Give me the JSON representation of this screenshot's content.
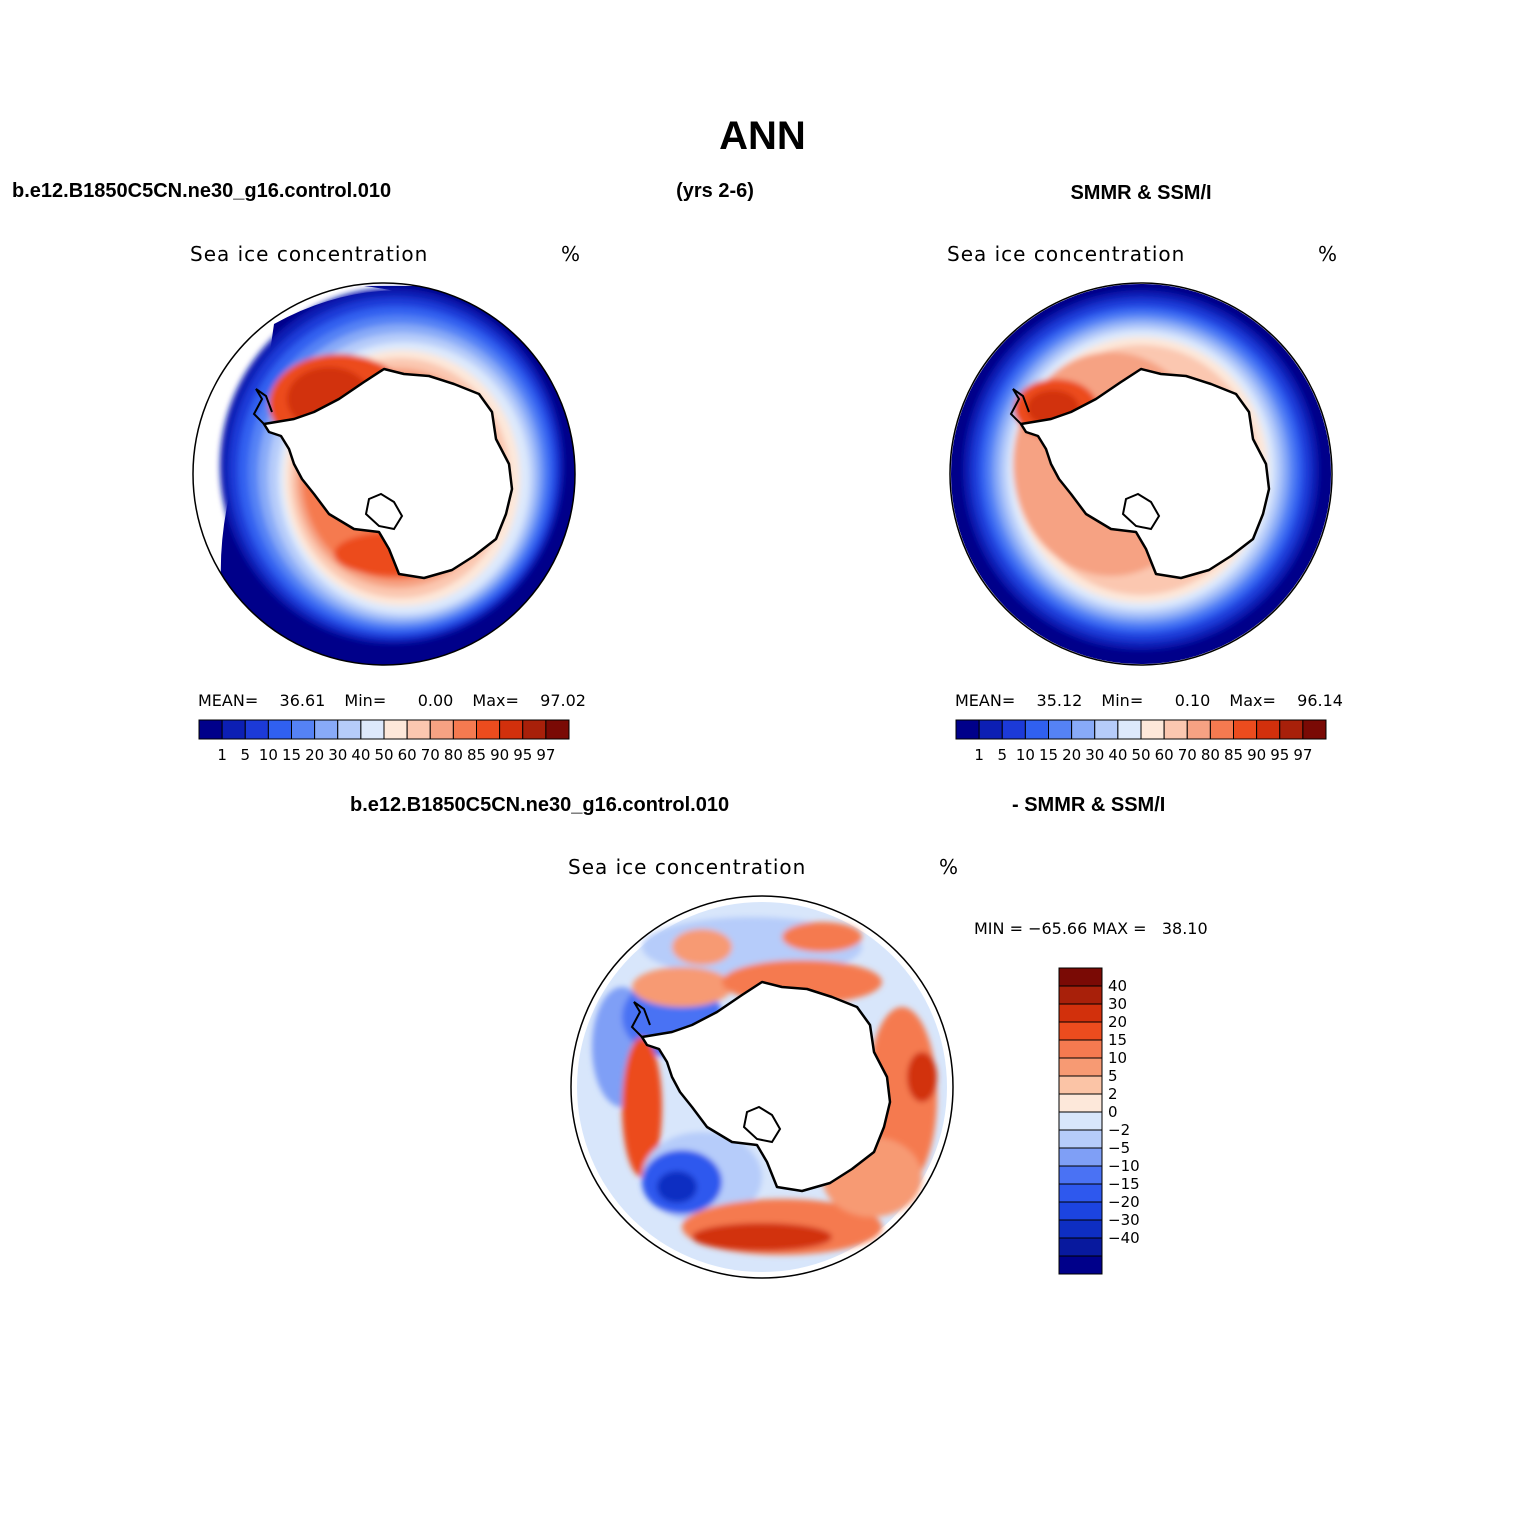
{
  "figure": {
    "title": "ANN",
    "case_label": "b.e12.B1850C5CN.ne30_g16.control.010",
    "years_label": "(yrs 2-6)",
    "obs_label": "SMMR & SSM/I"
  },
  "panels": [
    {
      "var_label": "Sea ice concentration",
      "units": "%",
      "stats": {
        "mean_label": "MEAN=",
        "mean": "36.61",
        "min_label": "Min=",
        "min": "0.00",
        "max_label": "Max=",
        "max": "97.02"
      },
      "colorbar": {
        "labels": [
          "1",
          "5",
          "10",
          "15",
          "20",
          "30",
          "40",
          "50",
          "60",
          "70",
          "80",
          "85",
          "90",
          "95",
          "97"
        ]
      }
    },
    {
      "var_label": "Sea ice concentration",
      "units": "%",
      "stats": {
        "mean_label": "MEAN=",
        "mean": "35.12",
        "min_label": "Min=",
        "min": "0.10",
        "max_label": "Max=",
        "max": "96.14"
      },
      "colorbar": {
        "labels": [
          "1",
          "5",
          "10",
          "15",
          "20",
          "30",
          "40",
          "50",
          "60",
          "70",
          "80",
          "85",
          "90",
          "95",
          "97"
        ]
      }
    }
  ],
  "diff_panel": {
    "case_label": "b.e12.B1850C5CN.ne30_g16.control.010",
    "obs_label": "- SMMR & SSM/I",
    "var_label": "Sea ice concentration",
    "units": "%",
    "minmax_text": "MIN = −65.66 MAX =   38.10",
    "colorbar": {
      "labels": [
        "40",
        "30",
        "20",
        "15",
        "10",
        "5",
        "2",
        "0",
        "−2",
        "−5",
        "−10",
        "−15",
        "−20",
        "−30",
        "−40"
      ]
    }
  },
  "chart_data": [
    {
      "type": "heatmap",
      "title": "Sea ice concentration",
      "units": "%",
      "projection": "south polar stereographic",
      "contour_levels": [
        1,
        5,
        10,
        15,
        20,
        30,
        40,
        50,
        60,
        70,
        80,
        85,
        90,
        95,
        97
      ],
      "stats": {
        "mean": 36.61,
        "min": 0.0,
        "max": 97.02
      }
    },
    {
      "type": "heatmap",
      "title": "Sea ice concentration",
      "units": "%",
      "projection": "south polar stereographic",
      "contour_levels": [
        1,
        5,
        10,
        15,
        20,
        30,
        40,
        50,
        60,
        70,
        80,
        85,
        90,
        95,
        97
      ],
      "stats": {
        "mean": 35.12,
        "min": 0.1,
        "max": 96.14
      }
    },
    {
      "type": "heatmap",
      "title": "Sea ice concentration",
      "units": "%",
      "projection": "south polar stereographic",
      "contour_levels": [
        -40,
        -30,
        -20,
        -15,
        -10,
        -5,
        -2,
        0,
        2,
        5,
        10,
        15,
        20,
        30,
        40
      ],
      "stats": {
        "min": -65.66,
        "max": 38.1
      }
    }
  ],
  "colors": {
    "conc_scale": [
      "#00008a",
      "#0c1fb4",
      "#1c3ad8",
      "#3060f0",
      "#5582f5",
      "#88aaf8",
      "#b6ccfa",
      "#dde9fc",
      "#fde8da",
      "#fbc7b0",
      "#f6a283",
      "#f57a50",
      "#ec4c1e",
      "#d2300c",
      "#a8200a",
      "#7a0a05"
    ],
    "diff_scale": [
      "#00008a",
      "#08199e",
      "#0e2ec2",
      "#1c44e0",
      "#2e58ee",
      "#4a72f4",
      "#7f9ff6",
      "#b6ccfa",
      "#d8e6fb",
      "#fde8da",
      "#fbc4a6",
      "#f79a73",
      "#f57a50",
      "#ec4c1e",
      "#d2300c",
      "#a8200a",
      "#7a0a05"
    ],
    "land": "#ffffff",
    "coast": "#000000"
  }
}
